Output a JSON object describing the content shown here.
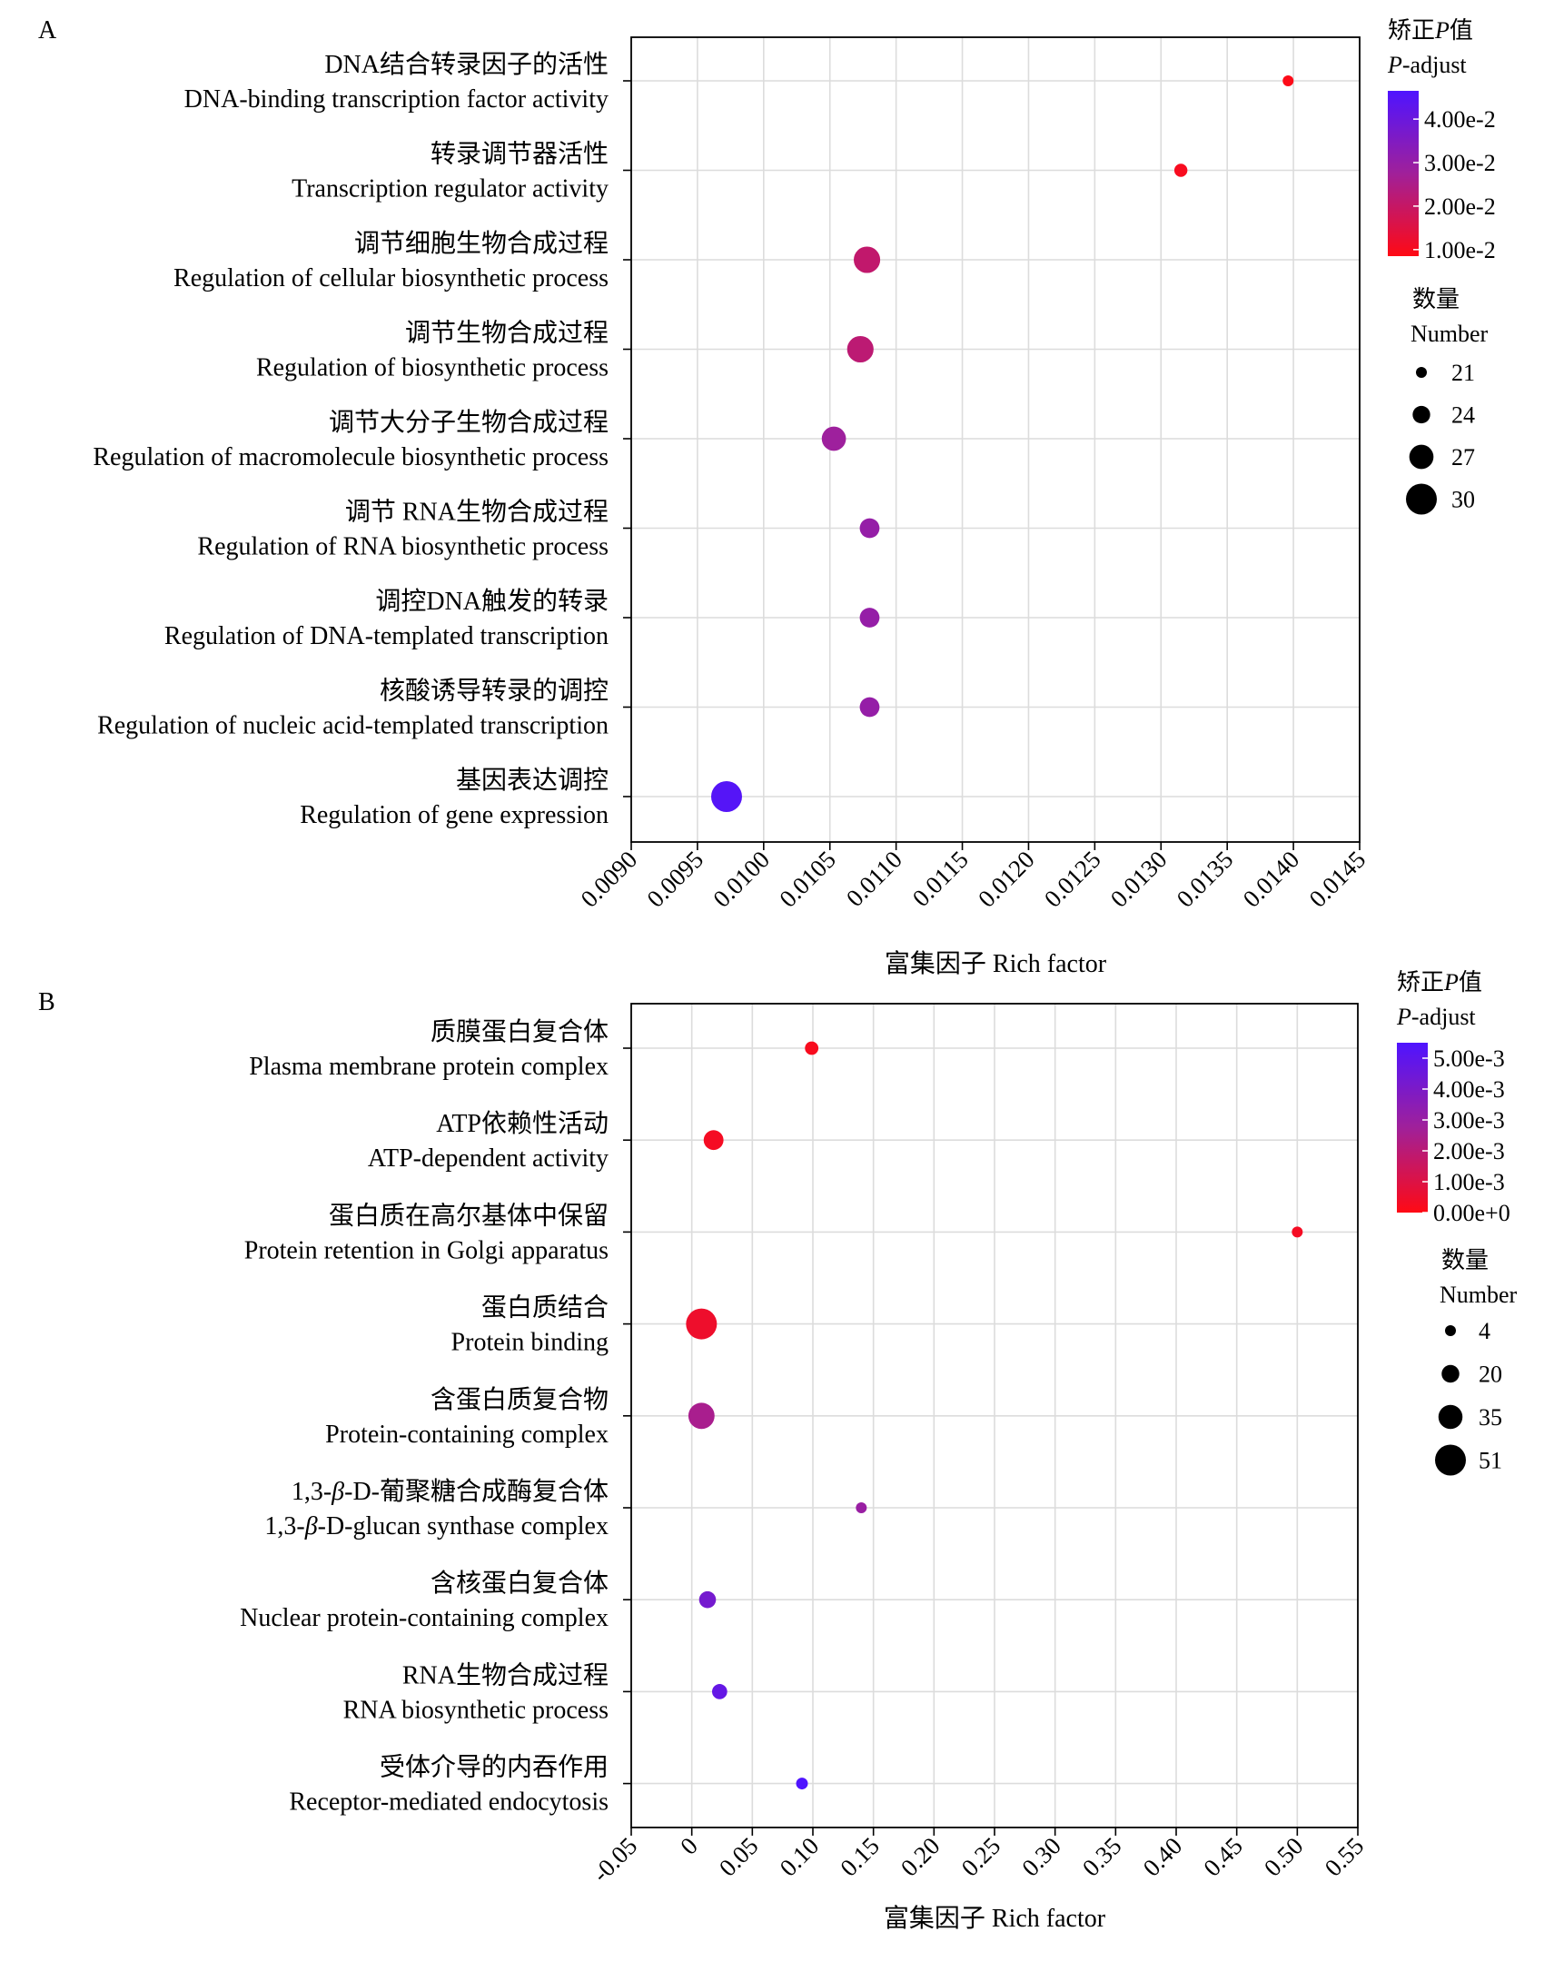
{
  "chart_data": [
    {
      "panel": "A",
      "type": "scatter",
      "xlabel": "富集因子 Rich factor",
      "xlim": [
        0.009,
        0.0145
      ],
      "xticks": [
        "0.0090",
        "0.0095",
        "0.0100",
        "0.0105",
        "0.0110",
        "0.0115",
        "0.0120",
        "0.0125",
        "0.0130",
        "0.0135",
        "0.0140",
        "0.0145"
      ],
      "xtick_values": [
        0.009,
        0.0095,
        0.01,
        0.0105,
        0.011,
        0.0115,
        0.012,
        0.0125,
        0.013,
        0.0135,
        0.014,
        0.0145
      ],
      "grid": true,
      "categories": [
        {
          "cn": "DNA结合转录因子的活性",
          "en": "DNA-binding transcription factor activity",
          "x": 0.01396,
          "number": 21,
          "padj": 0.009
        },
        {
          "cn": "转录调节器活性",
          "en": "Transcription regulator activity",
          "x": 0.01315,
          "number": 22,
          "padj": 0.01
        },
        {
          "cn": "调节细胞生物合成过程",
          "en": "Regulation of cellular biosynthetic process",
          "x": 0.01078,
          "number": 28,
          "padj": 0.021
        },
        {
          "cn": "调节生物合成过程",
          "en": "Regulation of biosynthetic process",
          "x": 0.01073,
          "number": 28,
          "padj": 0.022
        },
        {
          "cn": "调节大分子生物合成过程",
          "en": "Regulation of macromolecule biosynthetic process",
          "x": 0.01053,
          "number": 27,
          "padj": 0.028
        },
        {
          "cn": "调节 RNA生物合成过程",
          "en": "Regulation of RNA biosynthetic process",
          "x": 0.0108,
          "number": 25,
          "padj": 0.03
        },
        {
          "cn": "调控DNA触发的转录",
          "en": "Regulation of DNA-templated transcription",
          "x": 0.0108,
          "number": 25,
          "padj": 0.03
        },
        {
          "cn": "核酸诱导转录的调控",
          "en": "Regulation of nucleic acid-templated transcription",
          "x": 0.0108,
          "number": 25,
          "padj": 0.03
        },
        {
          "cn": "基因表达调控",
          "en": "Regulation of gene expression",
          "x": 0.00972,
          "number": 30,
          "padj": 0.045
        }
      ],
      "color_legend": {
        "title_cn": "矫正P值",
        "title_en": "P-adjust",
        "min": 0.0085,
        "max": 0.0465,
        "ticks": [
          {
            "value": 0.04,
            "label": "4.00e-2"
          },
          {
            "value": 0.03,
            "label": "3.00e-2"
          },
          {
            "value": 0.02,
            "label": "2.00e-2"
          },
          {
            "value": 0.01,
            "label": "1.00e-2"
          }
        ],
        "low_color": "#FF0A14",
        "high_color": "#4F14FF"
      },
      "size_legend": {
        "title_cn": "数量",
        "title_en": "Number",
        "items": [
          {
            "value": 21,
            "label": "21"
          },
          {
            "value": 24,
            "label": "24"
          },
          {
            "value": 27,
            "label": "27"
          },
          {
            "value": 30,
            "label": "30"
          }
        ]
      }
    },
    {
      "panel": "B",
      "type": "scatter",
      "xlabel": "富集因子 Rich factor",
      "xlim": [
        -0.05,
        0.55
      ],
      "xticks": [
        "-0.05",
        "0",
        "0.05",
        "0.10",
        "0.15",
        "0.20",
        "0.25",
        "0.30",
        "0.35",
        "0.40",
        "0.45",
        "0.50",
        "0.55"
      ],
      "xtick_values": [
        -0.05,
        0,
        0.05,
        0.1,
        0.15,
        0.2,
        0.25,
        0.3,
        0.35,
        0.4,
        0.45,
        0.5,
        0.55
      ],
      "grid": true,
      "categories": [
        {
          "cn": "质膜蛋白复合体",
          "en": "Plasma membrane protein complex",
          "x": 0.099,
          "number": 10,
          "padj": 0.0002
        },
        {
          "cn": "ATP依赖性活动",
          "en": "ATP-dependent activity",
          "x": 0.018,
          "number": 25,
          "padj": 0.0003
        },
        {
          "cn": "蛋白质在高尔基体中保留",
          "en": "Protein retention in Golgi apparatus",
          "x": 0.5,
          "number": 4,
          "padj": 0.0003
        },
        {
          "cn": "蛋白质结合",
          "en": "Protein binding",
          "x": 0.008,
          "number": 51,
          "padj": 0.0005
        },
        {
          "cn": "含蛋白质复合物",
          "en": "Protein-containing complex",
          "x": 0.008,
          "number": 40,
          "padj": 0.0025
        },
        {
          "cn": "1,3-β-D-葡聚糖合成酶复合体",
          "en": "1,3-β-D-glucan synthase complex",
          "x": 0.14,
          "number": 4,
          "padj": 0.003
        },
        {
          "cn": "含核蛋白复合体",
          "en": "Nuclear protein-containing complex",
          "x": 0.013,
          "number": 18,
          "padj": 0.0042
        },
        {
          "cn": "RNA生物合成过程",
          "en": "RNA biosynthetic process",
          "x": 0.023,
          "number": 14,
          "padj": 0.0048
        },
        {
          "cn": "受体介导的内吞作用",
          "en": "Receptor-mediated endocytosis",
          "x": 0.091,
          "number": 6,
          "padj": 0.0055
        }
      ],
      "color_legend": {
        "title_cn": "矫正P值",
        "title_en": "P-adjust",
        "min": 0.0,
        "max": 0.0055,
        "ticks": [
          {
            "value": 0.005,
            "label": "5.00e-3"
          },
          {
            "value": 0.004,
            "label": "4.00e-3"
          },
          {
            "value": 0.003,
            "label": "3.00e-3"
          },
          {
            "value": 0.002,
            "label": "2.00e-3"
          },
          {
            "value": 0.001,
            "label": "1.00e-3"
          },
          {
            "value": 0.0,
            "label": "0.00e+0"
          }
        ],
        "low_color": "#FF0A14",
        "high_color": "#4F14FF"
      },
      "size_legend": {
        "title_cn": "数量",
        "title_en": "Number",
        "items": [
          {
            "value": 4,
            "label": "4"
          },
          {
            "value": 20,
            "label": "20"
          },
          {
            "value": 35,
            "label": "35"
          },
          {
            "value": 51,
            "label": "51"
          }
        ]
      }
    }
  ]
}
